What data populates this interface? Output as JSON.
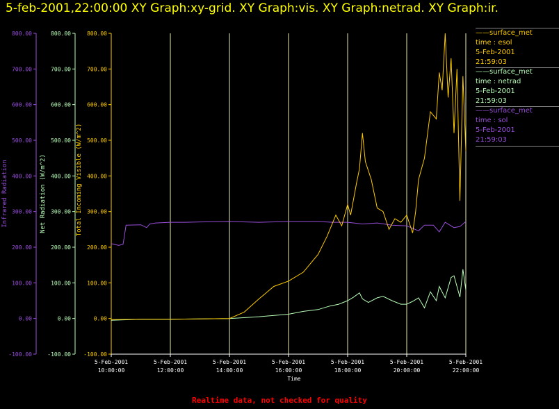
{
  "title": "5-feb-2001,22:00:00  XY Graph:xy-grid.  XY Graph:vis.  XY Graph:netrad.  XY Graph:ir.",
  "footer": "Realtime data, not checked for quality",
  "colors": {
    "ir": "#9a4fdc",
    "net": "#b8ffb8",
    "vis": "#ffcc00",
    "grid": "#e8e8b0",
    "axis": "#ffffff",
    "footer": "#ff0000"
  },
  "legend": [
    {
      "name": "surface_met",
      "var": "time : esol",
      "date": "5-Feb-2001",
      "time": "21:59:03",
      "color": "#ffcc00"
    },
    {
      "name": "surface_met",
      "var": "time : netrad",
      "date": "5-Feb-2001",
      "time": "21:59:03",
      "color": "#b8ffb8"
    },
    {
      "name": "surface_met",
      "var": "time : sol",
      "date": "5-Feb-2001",
      "time": "21:59:03",
      "color": "#9a4fdc"
    }
  ],
  "chart_data": {
    "type": "line",
    "xlabel": "Time",
    "xlim": [
      10.0,
      22.0
    ],
    "x_ticks": [
      {
        "date": "5-Feb-2001",
        "time": "10:00:00",
        "v": 10
      },
      {
        "date": "5-Feb-2001",
        "time": "12:00:00",
        "v": 12
      },
      {
        "date": "5-Feb-2001",
        "time": "14:00:00",
        "v": 14
      },
      {
        "date": "5-Feb-2001",
        "time": "16:00:00",
        "v": 16
      },
      {
        "date": "5-Feb-2001",
        "time": "18:00:00",
        "v": 18
      },
      {
        "date": "5-Feb-2001",
        "time": "20:00:00",
        "v": 20
      },
      {
        "date": "5-Feb-2001",
        "time": "22:00:00",
        "v": 22
      }
    ],
    "ylim": [
      -100,
      800
    ],
    "y_ticks": [
      "-100.00",
      "0.00",
      "100.00",
      "200.00",
      "300.00",
      "400.00",
      "500.00",
      "600.00",
      "700.00",
      "800.00"
    ],
    "grid": "vertical",
    "axes": [
      {
        "label": "Infrared Radiation",
        "color": "#9a4fdc"
      },
      {
        "label": "Net Radiation (W/m^2)",
        "color": "#b8ffb8"
      },
      {
        "label": "Total Incoming Visible (W/m^2)",
        "color": "#ffcc00"
      }
    ],
    "series": [
      {
        "var": "sol",
        "color": "#9a4fdc",
        "x": [
          10.0,
          10.25,
          10.4,
          10.5,
          11.0,
          11.2,
          11.3,
          11.5,
          12.0,
          12.5,
          13.0,
          14.0,
          15.0,
          16.0,
          17.0,
          17.5,
          18.0,
          18.5,
          19.0,
          19.5,
          20.0,
          20.4,
          20.6,
          20.9,
          21.1,
          21.3,
          21.6,
          21.8,
          22.0
        ],
        "y": [
          210,
          205,
          208,
          262,
          263,
          255,
          265,
          268,
          270,
          270,
          271,
          272,
          270,
          272,
          272,
          270,
          270,
          265,
          268,
          262,
          260,
          246,
          262,
          262,
          243,
          270,
          255,
          258,
          272
        ]
      },
      {
        "var": "netrad",
        "color": "#b8ffb8",
        "x": [
          10.0,
          11.0,
          12.0,
          13.0,
          14.0,
          15.0,
          16.0,
          16.5,
          17.0,
          17.4,
          17.7,
          18.0,
          18.2,
          18.4,
          18.5,
          18.7,
          19.0,
          19.2,
          19.5,
          19.8,
          20.0,
          20.2,
          20.4,
          20.6,
          20.8,
          21.0,
          21.1,
          21.3,
          21.5,
          21.6,
          21.8,
          21.9,
          22.0
        ],
        "y": [
          -5,
          -2,
          -2,
          -1,
          0,
          5,
          12,
          20,
          25,
          35,
          40,
          50,
          60,
          72,
          55,
          45,
          58,
          62,
          50,
          40,
          40,
          48,
          58,
          30,
          75,
          50,
          90,
          58,
          115,
          120,
          60,
          138,
          80
        ]
      },
      {
        "var": "esol",
        "color": "#ffcc00",
        "x": [
          10.0,
          11.0,
          12.0,
          13.0,
          14.0,
          14.5,
          15.0,
          15.5,
          16.0,
          16.5,
          17.0,
          17.3,
          17.6,
          17.8,
          18.0,
          18.1,
          18.3,
          18.4,
          18.5,
          18.6,
          18.8,
          19.0,
          19.2,
          19.4,
          19.6,
          19.8,
          20.0,
          20.2,
          20.3,
          20.4,
          20.6,
          20.8,
          21.0,
          21.1,
          21.2,
          21.3,
          21.4,
          21.5,
          21.6,
          21.7,
          21.8,
          21.9,
          22.0
        ],
        "y": [
          -3,
          -2,
          -2,
          -1,
          0,
          18,
          55,
          90,
          105,
          130,
          180,
          230,
          290,
          260,
          320,
          290,
          380,
          420,
          520,
          440,
          390,
          310,
          300,
          250,
          280,
          270,
          290,
          240,
          300,
          390,
          450,
          580,
          560,
          690,
          640,
          800,
          620,
          730,
          520,
          700,
          330,
          680,
          470
        ]
      }
    ]
  }
}
